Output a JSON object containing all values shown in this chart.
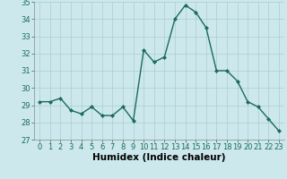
{
  "x": [
    0,
    1,
    2,
    3,
    4,
    5,
    6,
    7,
    8,
    9,
    10,
    11,
    12,
    13,
    14,
    15,
    16,
    17,
    18,
    19,
    20,
    21,
    22,
    23
  ],
  "y": [
    29.2,
    29.2,
    29.4,
    28.7,
    28.5,
    28.9,
    28.4,
    28.4,
    28.9,
    28.1,
    32.2,
    31.5,
    31.8,
    34.0,
    34.8,
    34.4,
    33.5,
    31.0,
    31.0,
    30.4,
    29.2,
    28.9,
    28.2,
    27.5
  ],
  "xlabel": "Humidex (Indice chaleur)",
  "ylim": [
    27,
    35
  ],
  "xlim_min": -0.5,
  "xlim_max": 23.5,
  "yticks": [
    27,
    28,
    29,
    30,
    31,
    32,
    33,
    34,
    35
  ],
  "xticks": [
    0,
    1,
    2,
    3,
    4,
    5,
    6,
    7,
    8,
    9,
    10,
    11,
    12,
    13,
    14,
    15,
    16,
    17,
    18,
    19,
    20,
    21,
    22,
    23
  ],
  "line_color": "#1a6b5a",
  "marker": "D",
  "marker_size": 2.0,
  "bg_color": "#cce8ec",
  "grid_color": "#aaccd4",
  "xlabel_fontsize": 7.5,
  "tick_fontsize": 6.0,
  "linewidth": 1.0
}
